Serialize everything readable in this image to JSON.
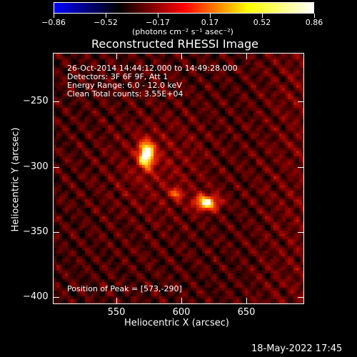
{
  "colorbar": {
    "tick_labels": [
      "−0.86",
      "−0.52",
      "−0.17",
      "0.17",
      "0.52",
      "0.86"
    ],
    "units_label": "(photons cm⁻² s⁻¹ asec⁻²)",
    "range": [
      -0.86,
      0.86
    ],
    "colormap": [
      "#0000ff",
      "#000000",
      "#ff0000",
      "#ffff00",
      "#ffffff"
    ]
  },
  "plot": {
    "title": "Reconstructed RHESSI Image",
    "info_lines": [
      "26-Oct-2014 14:44:12.000 to 14:49:28.000",
      "Detectors: 3F 6F 9F, Att 1",
      "Energy Range: 6.0 - 12.0 keV",
      "Clean    Total counts: 3.55E+04"
    ],
    "peak_label": "Position of Peak = [573,-290]",
    "xlabel": "Heliocentric X (arcsec)",
    "ylabel": "Heliocentric Y (arcsec)",
    "x_ticks": [
      "550",
      "600",
      "650"
    ],
    "y_ticks": [
      "−250",
      "−300",
      "−350",
      "−400"
    ],
    "xlim": [
      502,
      694
    ],
    "ylim": [
      -405,
      -213
    ]
  },
  "footer": {
    "timestamp": "18-May-2022 17:45"
  },
  "image_sources": [
    {
      "name": "peak-source",
      "x": 573,
      "y": -290,
      "intensity": 0.86
    },
    {
      "name": "secondary-source",
      "x": 619,
      "y": -327,
      "intensity": 0.72
    },
    {
      "name": "bridge-knot",
      "x": 596,
      "y": -320,
      "intensity": 0.45
    }
  ]
}
